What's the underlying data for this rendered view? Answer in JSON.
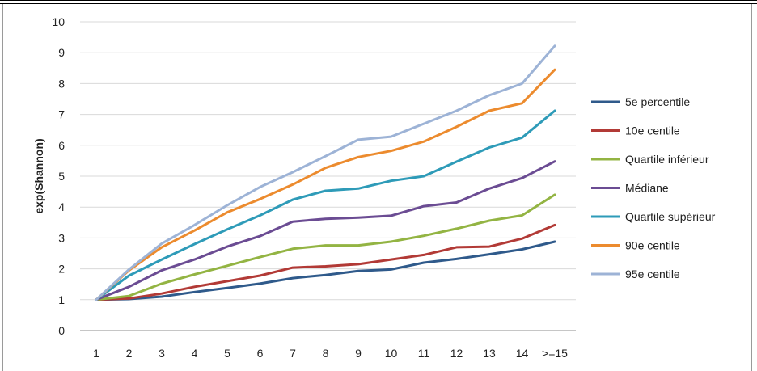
{
  "chart_data": {
    "type": "line",
    "ylabel": "exp(Shannon)",
    "xlabel": "",
    "ylim": [
      0,
      10
    ],
    "yticks": [
      "0",
      "1",
      "2",
      "3",
      "4",
      "5",
      "6",
      "7",
      "8",
      "9",
      "10"
    ],
    "categories": [
      "1",
      "2",
      "3",
      "4",
      "5",
      "6",
      "7",
      "8",
      "9",
      "10",
      "11",
      "12",
      "13",
      "14",
      ">=15"
    ],
    "grid": true,
    "legend_position": "right",
    "series": [
      {
        "name": "5e percentile",
        "color": "#2f5a8b",
        "values": [
          1,
          1.02,
          1.1,
          1.25,
          1.38,
          1.52,
          1.7,
          1.8,
          1.93,
          1.98,
          2.2,
          2.32,
          2.47,
          2.63,
          2.88
        ]
      },
      {
        "name": "10e centile",
        "color": "#b23a36",
        "values": [
          1,
          1.04,
          1.2,
          1.42,
          1.6,
          1.78,
          2.04,
          2.08,
          2.15,
          2.3,
          2.45,
          2.7,
          2.72,
          2.98,
          3.42
        ]
      },
      {
        "name": "Quartile inférieur",
        "color": "#93b443",
        "values": [
          1,
          1.12,
          1.52,
          1.82,
          2.1,
          2.38,
          2.65,
          2.76,
          2.76,
          2.88,
          3.07,
          3.3,
          3.56,
          3.73,
          4.4
        ]
      },
      {
        "name": "Médiane",
        "color": "#6b4c93",
        "values": [
          1,
          1.42,
          1.95,
          2.3,
          2.72,
          3.06,
          3.53,
          3.62,
          3.66,
          3.72,
          4.03,
          4.15,
          4.6,
          4.94,
          5.48
        ]
      },
      {
        "name": "Quartile supérieur",
        "color": "#2e9bb8",
        "values": [
          1,
          1.78,
          2.3,
          2.8,
          3.28,
          3.73,
          4.24,
          4.53,
          4.6,
          4.85,
          5.0,
          5.47,
          5.93,
          6.25,
          7.12
        ]
      },
      {
        "name": "90e centile",
        "color": "#ec8b2e",
        "values": [
          1,
          1.95,
          2.7,
          3.24,
          3.83,
          4.26,
          4.73,
          5.27,
          5.62,
          5.82,
          6.12,
          6.6,
          7.12,
          7.36,
          8.45
        ]
      },
      {
        "name": "95e centile",
        "color": "#9db3d6",
        "values": [
          1,
          1.98,
          2.82,
          3.42,
          4.06,
          4.65,
          5.13,
          5.65,
          6.18,
          6.28,
          6.7,
          7.12,
          7.62,
          8.0,
          9.22
        ]
      }
    ]
  }
}
